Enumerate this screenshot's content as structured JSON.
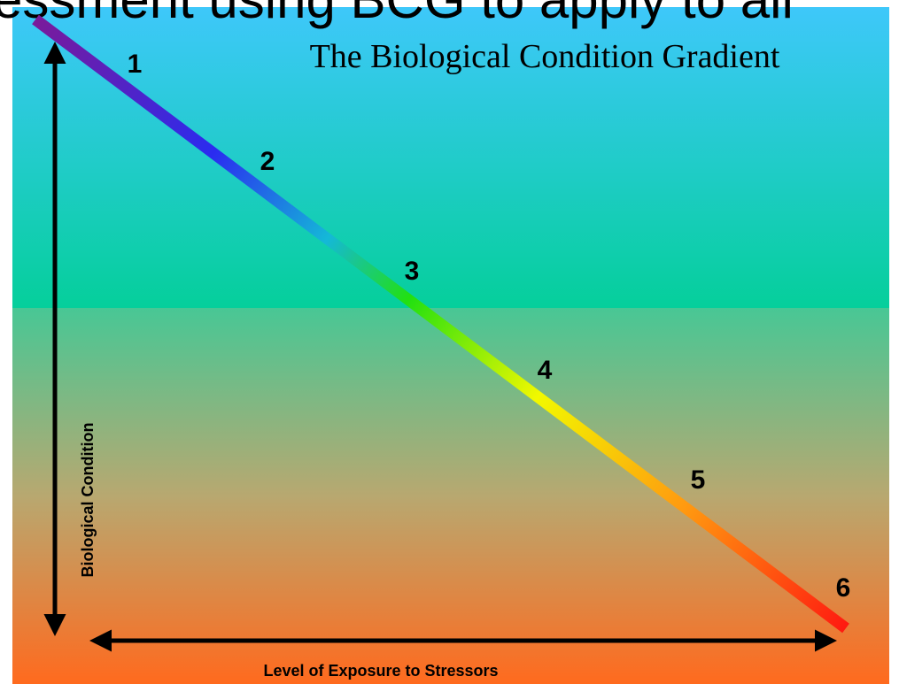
{
  "heading_fragment": "essment using BCG to apply to all",
  "title": "The Biological Condition Gradient",
  "tiers": [
    "1",
    "2",
    "3",
    "4",
    "5",
    "6"
  ],
  "y_axis_label": "Biological Condition",
  "x_axis_label": "Level of Exposure to Stressors"
}
